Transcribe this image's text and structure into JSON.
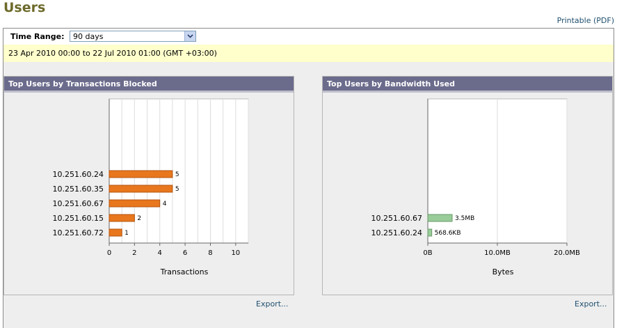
{
  "page": {
    "title": "Users",
    "printable_label": "Printable (PDF)"
  },
  "time_range": {
    "label": "Time Range:",
    "selected": "90 days",
    "date_range": "23 Apr 2010 00:00 to 22 Jul 2010 01:00 (GMT +03:00)"
  },
  "panels": {
    "left": {
      "title": "Top Users by Transactions Blocked",
      "export_label": "Export..."
    },
    "right": {
      "title": "Top Users by Bandwidth Used",
      "export_label": "Export..."
    }
  },
  "colors": {
    "bar_orange": "#e8771e",
    "bar_green": "#99cc99",
    "header_bg": "#6b6b8c",
    "title_olive": "#6d6a2a"
  },
  "chart_data": [
    {
      "type": "bar",
      "orientation": "horizontal",
      "title": "",
      "xlabel": "Transactions",
      "ylabel": "",
      "categories": [
        "10.251.60.24",
        "10.251.60.35",
        "10.251.60.67",
        "10.251.60.15",
        "10.251.60.72"
      ],
      "values": [
        5,
        5,
        4,
        2,
        1
      ],
      "value_labels": [
        "5",
        "5",
        "4",
        "2",
        "1"
      ],
      "xlim": [
        0,
        11
      ],
      "xticks": [
        0,
        2,
        4,
        6,
        8,
        10
      ],
      "xtick_labels": [
        "0",
        "2",
        "4",
        "6",
        "8",
        "10"
      ],
      "grid": true
    },
    {
      "type": "bar",
      "orientation": "horizontal",
      "title": "",
      "xlabel": "Bytes",
      "ylabel": "",
      "categories": [
        "10.251.60.67",
        "10.251.60.24"
      ],
      "values": [
        3.5,
        0.5686
      ],
      "value_labels": [
        "3.5MB",
        "568.6KB"
      ],
      "xlim": [
        0,
        20
      ],
      "xticks": [
        0,
        10,
        20
      ],
      "xtick_labels": [
        "0B",
        "10.0MB",
        "20.0MB"
      ],
      "grid": true
    }
  ]
}
